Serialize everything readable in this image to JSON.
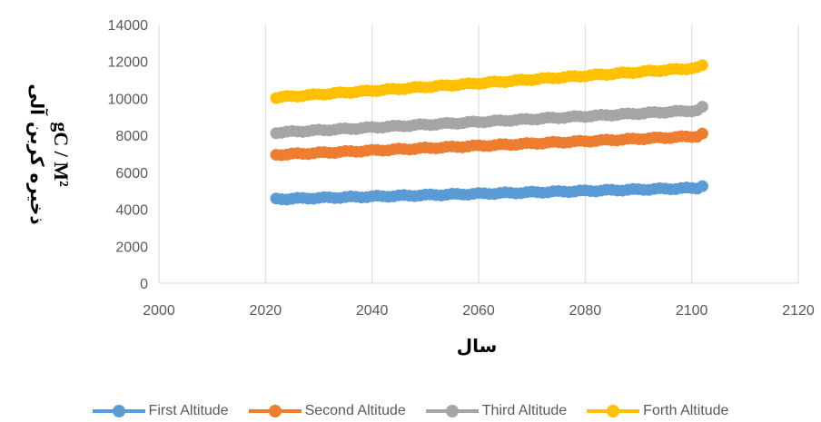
{
  "chart_data": {
    "type": "scatter",
    "title": "",
    "xlabel": "سال",
    "ylabel_line1": "ذخیره کربن آلی",
    "ylabel_line2": "gC / M²",
    "xlim": [
      2000,
      2120
    ],
    "ylim": [
      0,
      14000
    ],
    "x_ticks": [
      2000,
      2020,
      2040,
      2060,
      2080,
      2100,
      2120
    ],
    "y_ticks": [
      0,
      2000,
      4000,
      6000,
      8000,
      10000,
      12000,
      14000
    ],
    "grid": "vertical",
    "legend_position": "bottom",
    "x_range": [
      2022,
      2102
    ],
    "series": [
      {
        "name": "First Altitude",
        "color": "#5b9bd5",
        "start": 4550,
        "end": 5150,
        "last": 5250
      },
      {
        "name": "Second Altitude",
        "color": "#ed7d31",
        "start": 6950,
        "end": 7950,
        "last": 8100
      },
      {
        "name": "Third Altitude",
        "color": "#a5a5a5",
        "start": 8150,
        "end": 9350,
        "last": 9550
      },
      {
        "name": "Forth Altitude",
        "color": "#ffc000",
        "start": 10050,
        "end": 11650,
        "last": 11800
      }
    ]
  }
}
